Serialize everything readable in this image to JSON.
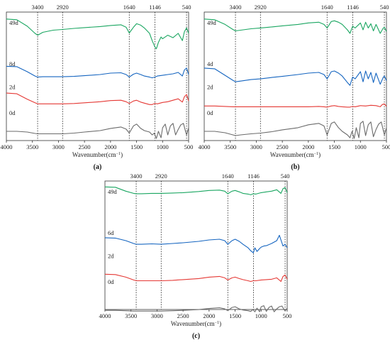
{
  "figure": {
    "xlabel": "Wavenumber(cm",
    "xlabel_sup": "−1",
    "xlabel_end": ")",
    "x_ticks": [
      "4000",
      "3500",
      "3000",
      "2500",
      "2000",
      "1500",
      "1000",
      "500"
    ],
    "marker_labels": [
      "3400",
      "2920",
      "1640",
      "1146",
      "540"
    ]
  },
  "panels": [
    {
      "label": "(a)",
      "series_names": [
        "49d",
        "8d",
        "2d",
        "0d"
      ]
    },
    {
      "label": "(b)",
      "series_names": [
        "49d",
        "4d",
        "2d",
        "0d"
      ]
    },
    {
      "label": "(c)",
      "series_names": [
        "49d",
        "6d",
        "2d",
        "0d"
      ]
    }
  ],
  "chart_data": [
    {
      "type": "line",
      "title": "(a)",
      "xlabel": "Wavenumber(cm−1)",
      "ylabel": "",
      "xlim": [
        4000,
        500
      ],
      "x_reversed": true,
      "y_ticks": "none",
      "reference_lines_x": [
        3400,
        2920,
        1640,
        1146,
        540
      ],
      "colors": {
        "49d": "#1aa661",
        "8d": "#1565c0",
        "2d": "#e53935",
        "0d": "#6b6b6b"
      },
      "series": [
        {
          "name": "49d",
          "x": [
            4000,
            3800,
            3600,
            3450,
            3400,
            3300,
            3100,
            2920,
            2700,
            2500,
            2200,
            2000,
            1800,
            1700,
            1640,
            1560,
            1500,
            1420,
            1350,
            1250,
            1200,
            1150,
            1120,
            1080,
            1030,
            1000,
            900,
            800,
            700,
            620,
            580,
            540,
            500
          ],
          "y": [
            0.95,
            0.93,
            0.75,
            0.55,
            0.5,
            0.58,
            0.64,
            0.66,
            0.69,
            0.71,
            0.74,
            0.77,
            0.79,
            0.72,
            0.56,
            0.72,
            0.82,
            0.78,
            0.7,
            0.55,
            0.35,
            0.18,
            0.12,
            0.3,
            0.45,
            0.4,
            0.5,
            0.43,
            0.55,
            0.35,
            0.6,
            0.7,
            0.55
          ]
        },
        {
          "name": "8d",
          "x": [
            4000,
            3800,
            3600,
            3450,
            3400,
            3300,
            3100,
            2920,
            2700,
            2500,
            2200,
            2000,
            1800,
            1700,
            1640,
            1560,
            1500,
            1420,
            1350,
            1250,
            1200,
            1150,
            1100,
            1000,
            900,
            800,
            700,
            620,
            580,
            540,
            500
          ],
          "y": [
            0.85,
            0.84,
            0.7,
            0.58,
            0.55,
            0.56,
            0.56,
            0.56,
            0.57,
            0.59,
            0.62,
            0.66,
            0.67,
            0.62,
            0.55,
            0.63,
            0.66,
            0.62,
            0.58,
            0.55,
            0.53,
            0.55,
            0.58,
            0.6,
            0.62,
            0.64,
            0.68,
            0.58,
            0.75,
            0.8,
            0.62
          ]
        },
        {
          "name": "2d",
          "x": [
            4000,
            3800,
            3600,
            3450,
            3400,
            3300,
            3100,
            2920,
            2700,
            2500,
            2200,
            2000,
            1800,
            1700,
            1640,
            1560,
            1500,
            1420,
            1350,
            1250,
            1200,
            1150,
            1100,
            1000,
            900,
            800,
            700,
            620,
            580,
            540,
            500
          ],
          "y": [
            0.82,
            0.8,
            0.65,
            0.55,
            0.52,
            0.52,
            0.52,
            0.52,
            0.53,
            0.55,
            0.58,
            0.61,
            0.62,
            0.58,
            0.53,
            0.6,
            0.62,
            0.57,
            0.54,
            0.5,
            0.5,
            0.53,
            0.52,
            0.56,
            0.58,
            0.62,
            0.66,
            0.57,
            0.72,
            0.78,
            0.6
          ]
        },
        {
          "name": "0d",
          "x": [
            4000,
            3800,
            3600,
            3450,
            3400,
            3300,
            3100,
            2920,
            2700,
            2500,
            2200,
            2000,
            1800,
            1700,
            1640,
            1560,
            1500,
            1420,
            1350,
            1250,
            1200,
            1160,
            1120,
            1080,
            1030,
            1000,
            950,
            900,
            850,
            800,
            750,
            700,
            650,
            600,
            560,
            540,
            500
          ],
          "y": [
            0.4,
            0.4,
            0.38,
            0.34,
            0.33,
            0.33,
            0.33,
            0.33,
            0.35,
            0.38,
            0.42,
            0.48,
            0.52,
            0.46,
            0.35,
            0.55,
            0.6,
            0.48,
            0.42,
            0.38,
            0.3,
            0.35,
            0.2,
            0.4,
            0.22,
            0.5,
            0.6,
            0.3,
            0.55,
            0.62,
            0.3,
            0.45,
            0.58,
            0.62,
            0.4,
            0.3,
            0.5
          ]
        }
      ]
    },
    {
      "type": "line",
      "title": "(b)",
      "xlabel": "Wavenumber(cm−1)",
      "ylabel": "",
      "xlim": [
        4000,
        500
      ],
      "x_reversed": true,
      "y_ticks": "none",
      "reference_lines_x": [
        3400,
        2920,
        1640,
        1146,
        540
      ],
      "colors": {
        "49d": "#1aa661",
        "4d": "#1565c0",
        "2d": "#e53935",
        "0d": "#6b6b6b"
      },
      "series": [
        {
          "name": "49d",
          "x": [
            4000,
            3800,
            3600,
            3450,
            3400,
            3300,
            3100,
            2920,
            2700,
            2500,
            2200,
            2000,
            1800,
            1700,
            1640,
            1560,
            1500,
            1420,
            1350,
            1250,
            1200,
            1150,
            1100,
            1000,
            950,
            900,
            850,
            800,
            750,
            700,
            620,
            560,
            540,
            500
          ],
          "y": [
            0.95,
            0.93,
            0.8,
            0.66,
            0.62,
            0.64,
            0.68,
            0.7,
            0.73,
            0.76,
            0.8,
            0.84,
            0.86,
            0.8,
            0.7,
            0.88,
            0.9,
            0.86,
            0.8,
            0.65,
            0.55,
            0.75,
            0.7,
            0.84,
            0.65,
            0.86,
            0.7,
            0.82,
            0.62,
            0.8,
            0.55,
            0.7,
            0.72,
            0.6
          ]
        },
        {
          "name": "4d",
          "x": [
            4000,
            3800,
            3600,
            3450,
            3400,
            3300,
            3100,
            2920,
            2700,
            2500,
            2200,
            2000,
            1800,
            1700,
            1640,
            1560,
            1500,
            1420,
            1350,
            1250,
            1200,
            1150,
            1100,
            1000,
            950,
            900,
            850,
            800,
            750,
            700,
            620,
            560,
            540,
            500
          ],
          "y": [
            0.8,
            0.78,
            0.6,
            0.46,
            0.42,
            0.44,
            0.48,
            0.5,
            0.54,
            0.57,
            0.62,
            0.66,
            0.68,
            0.62,
            0.5,
            0.7,
            0.72,
            0.66,
            0.58,
            0.4,
            0.32,
            0.55,
            0.5,
            0.7,
            0.42,
            0.72,
            0.5,
            0.68,
            0.4,
            0.66,
            0.35,
            0.55,
            0.58,
            0.45
          ]
        },
        {
          "name": "2d",
          "x": [
            4000,
            3800,
            3600,
            3450,
            3400,
            3300,
            3100,
            2920,
            2700,
            2500,
            2200,
            2000,
            1800,
            1700,
            1640,
            1560,
            1500,
            1420,
            1350,
            1250,
            1200,
            1150,
            1100,
            1000,
            900,
            800,
            700,
            620,
            580,
            540,
            500
          ],
          "y": [
            0.46,
            0.46,
            0.45,
            0.44,
            0.44,
            0.44,
            0.44,
            0.44,
            0.44,
            0.44,
            0.44,
            0.44,
            0.45,
            0.44,
            0.43,
            0.46,
            0.47,
            0.45,
            0.44,
            0.43,
            0.43,
            0.45,
            0.44,
            0.47,
            0.46,
            0.48,
            0.47,
            0.44,
            0.5,
            0.52,
            0.45
          ]
        },
        {
          "name": "0d",
          "x": [
            4000,
            3800,
            3600,
            3450,
            3400,
            3300,
            3100,
            2920,
            2700,
            2500,
            2200,
            2000,
            1800,
            1700,
            1640,
            1560,
            1500,
            1420,
            1350,
            1250,
            1200,
            1160,
            1120,
            1080,
            1030,
            1000,
            950,
            900,
            850,
            800,
            750,
            700,
            650,
            600,
            560,
            540,
            500
          ],
          "y": [
            0.4,
            0.4,
            0.36,
            0.3,
            0.28,
            0.3,
            0.33,
            0.35,
            0.39,
            0.44,
            0.5,
            0.58,
            0.62,
            0.55,
            0.3,
            0.62,
            0.66,
            0.5,
            0.4,
            0.3,
            0.22,
            0.4,
            0.2,
            0.5,
            0.22,
            0.62,
            0.68,
            0.28,
            0.58,
            0.66,
            0.25,
            0.45,
            0.6,
            0.66,
            0.42,
            0.3,
            0.5
          ]
        }
      ]
    },
    {
      "type": "line",
      "title": "(c)",
      "xlabel": "Wavenumber(cm−1)",
      "ylabel": "",
      "xlim": [
        4000,
        500
      ],
      "x_reversed": true,
      "y_ticks": "none",
      "reference_lines_x": [
        3400,
        2920,
        1640,
        1146,
        540
      ],
      "colors": {
        "49d": "#1aa661",
        "6d": "#1565c0",
        "2d": "#e53935",
        "0d": "#6b6b6b"
      },
      "series": [
        {
          "name": "49d",
          "x": [
            4000,
            3800,
            3600,
            3450,
            3400,
            3300,
            3100,
            2920,
            2700,
            2500,
            2200,
            2000,
            1800,
            1700,
            1640,
            1560,
            1500,
            1420,
            1350,
            1250,
            1200,
            1150,
            1100,
            1000,
            900,
            800,
            700,
            620,
            580,
            540,
            500
          ],
          "y": [
            0.98,
            0.97,
            0.86,
            0.8,
            0.79,
            0.79,
            0.8,
            0.8,
            0.81,
            0.82,
            0.85,
            0.88,
            0.89,
            0.86,
            0.79,
            0.86,
            0.88,
            0.84,
            0.8,
            0.78,
            0.76,
            0.79,
            0.78,
            0.82,
            0.84,
            0.86,
            0.9,
            0.8,
            0.93,
            0.96,
            0.82
          ]
        },
        {
          "name": "6d",
          "x": [
            4000,
            3800,
            3600,
            3450,
            3400,
            3300,
            3100,
            2920,
            2700,
            2500,
            2200,
            2000,
            1800,
            1700,
            1640,
            1560,
            1500,
            1420,
            1350,
            1250,
            1200,
            1150,
            1120,
            1080,
            1030,
            1000,
            950,
            900,
            800,
            700,
            650,
            620,
            580,
            540,
            500
          ],
          "y": [
            0.78,
            0.77,
            0.7,
            0.62,
            0.6,
            0.6,
            0.61,
            0.6,
            0.62,
            0.64,
            0.68,
            0.72,
            0.74,
            0.7,
            0.6,
            0.7,
            0.74,
            0.68,
            0.6,
            0.5,
            0.42,
            0.36,
            0.5,
            0.4,
            0.48,
            0.52,
            0.55,
            0.56,
            0.62,
            0.7,
            0.85,
            0.72,
            0.55,
            0.6,
            0.5
          ]
        },
        {
          "name": "2d",
          "x": [
            4000,
            3800,
            3600,
            3450,
            3400,
            3300,
            3100,
            2920,
            2700,
            2500,
            2200,
            2000,
            1800,
            1700,
            1640,
            1560,
            1500,
            1420,
            1350,
            1250,
            1200,
            1150,
            1100,
            1000,
            900,
            800,
            700,
            620,
            580,
            540,
            500
          ],
          "y": [
            0.48,
            0.47,
            0.4,
            0.32,
            0.3,
            0.3,
            0.3,
            0.3,
            0.31,
            0.33,
            0.36,
            0.4,
            0.42,
            0.38,
            0.32,
            0.38,
            0.4,
            0.36,
            0.33,
            0.3,
            0.28,
            0.3,
            0.3,
            0.32,
            0.33,
            0.34,
            0.38,
            0.28,
            0.42,
            0.46,
            0.34
          ]
        },
        {
          "name": "0d",
          "x": [
            4000,
            3800,
            3600,
            3450,
            3400,
            3300,
            3100,
            2920,
            2700,
            2500,
            2200,
            2000,
            1800,
            1700,
            1640,
            1560,
            1500,
            1420,
            1350,
            1250,
            1200,
            1160,
            1120,
            1080,
            1030,
            1000,
            950,
            900,
            850,
            800,
            750,
            700,
            650,
            600,
            560,
            540,
            500
          ],
          "y": [
            0.12,
            0.12,
            0.11,
            0.1,
            0.1,
            0.1,
            0.1,
            0.1,
            0.11,
            0.12,
            0.14,
            0.17,
            0.19,
            0.16,
            0.11,
            0.2,
            0.22,
            0.16,
            0.13,
            0.11,
            0.09,
            0.14,
            0.08,
            0.18,
            0.08,
            0.22,
            0.25,
            0.09,
            0.2,
            0.24,
            0.08,
            0.16,
            0.22,
            0.24,
            0.14,
            0.1,
            0.18
          ]
        }
      ]
    }
  ]
}
